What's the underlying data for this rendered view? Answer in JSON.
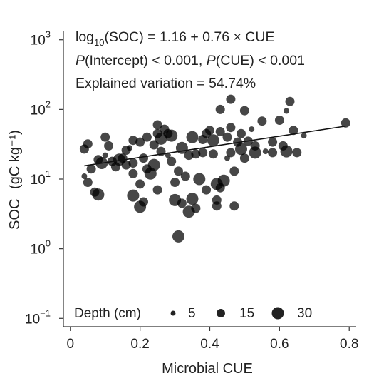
{
  "chart_data": {
    "type": "scatter",
    "xlabel": "Microbial CUE",
    "ylabel": "SOC",
    "ylabel_unit": "(gC kg⁻¹)",
    "xlim": [
      -0.02,
      0.82
    ],
    "ylim": [
      -1.12,
      3.12
    ],
    "y_scale": "log10",
    "x_ticks": [
      0,
      0.2,
      0.4,
      0.6,
      0.8
    ],
    "x_tick_labels": [
      "0",
      "0.2",
      "0.4",
      "0.6",
      "0.8"
    ],
    "y_ticks": [
      -1,
      0,
      1,
      2,
      3
    ],
    "y_tick_labels": [
      {
        "base": "10",
        "exp": "−1"
      },
      {
        "base": "10",
        "exp": "0"
      },
      {
        "base": "10",
        "exp": "1"
      },
      {
        "base": "10",
        "exp": "2"
      },
      {
        "base": "10",
        "exp": "3"
      }
    ],
    "regression": {
      "intercept": 1.16,
      "slope": 0.76,
      "x_range": [
        0.04,
        0.79
      ]
    },
    "annotations": {
      "equation": {
        "parts": [
          "log",
          "10",
          "(SOC) = 1.16 + 0.76 × CUE"
        ]
      },
      "pvalues": {
        "parts": [
          "P",
          "(Intercept) < 0.001, ",
          "P",
          "(CUE) < 0.001"
        ]
      },
      "explained": "Explained variation = 54.74%"
    },
    "legend": {
      "title": "Depth (cm)",
      "entries": [
        {
          "label": "5",
          "depth": 5
        },
        {
          "label": "15",
          "depth": 15
        },
        {
          "label": "30",
          "depth": 30
        }
      ],
      "placement": "bottom"
    },
    "marker_color": "#000000",
    "marker_opacity": 0.72,
    "points": [
      {
        "x": 0.04,
        "y": 11,
        "d": 5
      },
      {
        "x": 0.04,
        "y": 27,
        "d": 15
      },
      {
        "x": 0.05,
        "y": 9,
        "d": 15
      },
      {
        "x": 0.05,
        "y": 32,
        "d": 15
      },
      {
        "x": 0.06,
        "y": 14,
        "d": 15
      },
      {
        "x": 0.07,
        "y": 6.5,
        "d": 15
      },
      {
        "x": 0.08,
        "y": 19,
        "d": 15
      },
      {
        "x": 0.09,
        "y": 17,
        "d": 30
      },
      {
        "x": 0.08,
        "y": 6,
        "d": 30
      },
      {
        "x": 0.1,
        "y": 40,
        "d": 15
      },
      {
        "x": 0.1,
        "y": 22,
        "d": 5
      },
      {
        "x": 0.11,
        "y": 30,
        "d": 15
      },
      {
        "x": 0.12,
        "y": 18,
        "d": 15
      },
      {
        "x": 0.13,
        "y": 15,
        "d": 15
      },
      {
        "x": 0.14,
        "y": 19,
        "d": 30
      },
      {
        "x": 0.15,
        "y": 20,
        "d": 15
      },
      {
        "x": 0.16,
        "y": 16,
        "d": 15
      },
      {
        "x": 0.16,
        "y": 26,
        "d": 15
      },
      {
        "x": 0.17,
        "y": 28,
        "d": 5
      },
      {
        "x": 0.18,
        "y": 36,
        "d": 15
      },
      {
        "x": 0.18,
        "y": 17,
        "d": 15
      },
      {
        "x": 0.18,
        "y": 12,
        "d": 15
      },
      {
        "x": 0.18,
        "y": 5.8,
        "d": 30
      },
      {
        "x": 0.2,
        "y": 34,
        "d": 15
      },
      {
        "x": 0.2,
        "y": 8.5,
        "d": 15
      },
      {
        "x": 0.21,
        "y": 4.7,
        "d": 15
      },
      {
        "x": 0.2,
        "y": 4,
        "d": 30
      },
      {
        "x": 0.21,
        "y": 20,
        "d": 15
      },
      {
        "x": 0.22,
        "y": 40,
        "d": 15
      },
      {
        "x": 0.22,
        "y": 14,
        "d": 15
      },
      {
        "x": 0.23,
        "y": 12,
        "d": 30
      },
      {
        "x": 0.24,
        "y": 16,
        "d": 30
      },
      {
        "x": 0.24,
        "y": 31,
        "d": 15
      },
      {
        "x": 0.25,
        "y": 45,
        "d": 15
      },
      {
        "x": 0.25,
        "y": 60,
        "d": 15
      },
      {
        "x": 0.25,
        "y": 7,
        "d": 15
      },
      {
        "x": 0.26,
        "y": 38,
        "d": 30
      },
      {
        "x": 0.26,
        "y": 25,
        "d": 15
      },
      {
        "x": 0.27,
        "y": 52,
        "d": 15
      },
      {
        "x": 0.28,
        "y": 22,
        "d": 5
      },
      {
        "x": 0.28,
        "y": 45,
        "d": 15
      },
      {
        "x": 0.29,
        "y": 18,
        "d": 15
      },
      {
        "x": 0.29,
        "y": 42,
        "d": 30
      },
      {
        "x": 0.3,
        "y": 9,
        "d": 15
      },
      {
        "x": 0.3,
        "y": 5,
        "d": 30
      },
      {
        "x": 0.31,
        "y": 1.5,
        "d": 30
      },
      {
        "x": 0.31,
        "y": 13,
        "d": 15
      },
      {
        "x": 0.32,
        "y": 28,
        "d": 30
      },
      {
        "x": 0.32,
        "y": 4.5,
        "d": 15
      },
      {
        "x": 0.33,
        "y": 11,
        "d": 15
      },
      {
        "x": 0.34,
        "y": 3.4,
        "d": 30
      },
      {
        "x": 0.34,
        "y": 22,
        "d": 15
      },
      {
        "x": 0.35,
        "y": 40,
        "d": 30
      },
      {
        "x": 0.35,
        "y": 5.2,
        "d": 30
      },
      {
        "x": 0.36,
        "y": 3.8,
        "d": 15
      },
      {
        "x": 0.36,
        "y": 23,
        "d": 15
      },
      {
        "x": 0.37,
        "y": 10,
        "d": 30
      },
      {
        "x": 0.38,
        "y": 24,
        "d": 15
      },
      {
        "x": 0.38,
        "y": 37,
        "d": 15
      },
      {
        "x": 0.39,
        "y": 45,
        "d": 15
      },
      {
        "x": 0.39,
        "y": 7,
        "d": 15
      },
      {
        "x": 0.4,
        "y": 50,
        "d": 15
      },
      {
        "x": 0.41,
        "y": 36,
        "d": 30
      },
      {
        "x": 0.41,
        "y": 23,
        "d": 15
      },
      {
        "x": 0.42,
        "y": 5,
        "d": 15
      },
      {
        "x": 0.42,
        "y": 4.1,
        "d": 15
      },
      {
        "x": 0.43,
        "y": 100,
        "d": 15
      },
      {
        "x": 0.43,
        "y": 48,
        "d": 15
      },
      {
        "x": 0.42,
        "y": 8.5,
        "d": 30
      },
      {
        "x": 0.43,
        "y": 7.5,
        "d": 15
      },
      {
        "x": 0.44,
        "y": 9.5,
        "d": 30
      },
      {
        "x": 0.45,
        "y": 40,
        "d": 15
      },
      {
        "x": 0.45,
        "y": 20,
        "d": 5
      },
      {
        "x": 0.46,
        "y": 55,
        "d": 15
      },
      {
        "x": 0.46,
        "y": 140,
        "d": 15
      },
      {
        "x": 0.46,
        "y": 24,
        "d": 15
      },
      {
        "x": 0.47,
        "y": 13,
        "d": 15
      },
      {
        "x": 0.47,
        "y": 4.1,
        "d": 15
      },
      {
        "x": 0.48,
        "y": 34,
        "d": 15
      },
      {
        "x": 0.49,
        "y": 27,
        "d": 30
      },
      {
        "x": 0.49,
        "y": 45,
        "d": 15
      },
      {
        "x": 0.5,
        "y": 96,
        "d": 15
      },
      {
        "x": 0.5,
        "y": 20,
        "d": 15
      },
      {
        "x": 0.51,
        "y": 35,
        "d": 15
      },
      {
        "x": 0.52,
        "y": 52,
        "d": 5
      },
      {
        "x": 0.53,
        "y": 30,
        "d": 15
      },
      {
        "x": 0.53,
        "y": 24,
        "d": 30
      },
      {
        "x": 0.55,
        "y": 68,
        "d": 15
      },
      {
        "x": 0.56,
        "y": 25,
        "d": 5
      },
      {
        "x": 0.58,
        "y": 34,
        "d": 15
      },
      {
        "x": 0.58,
        "y": 24,
        "d": 15
      },
      {
        "x": 0.6,
        "y": 70,
        "d": 15
      },
      {
        "x": 0.61,
        "y": 30,
        "d": 15
      },
      {
        "x": 0.62,
        "y": 25,
        "d": 30
      },
      {
        "x": 0.62,
        "y": 95,
        "d": 5
      },
      {
        "x": 0.63,
        "y": 130,
        "d": 15
      },
      {
        "x": 0.64,
        "y": 50,
        "d": 15
      },
      {
        "x": 0.65,
        "y": 24,
        "d": 15
      },
      {
        "x": 0.67,
        "y": 42,
        "d": 5
      },
      {
        "x": 0.79,
        "y": 64,
        "d": 15
      }
    ]
  }
}
